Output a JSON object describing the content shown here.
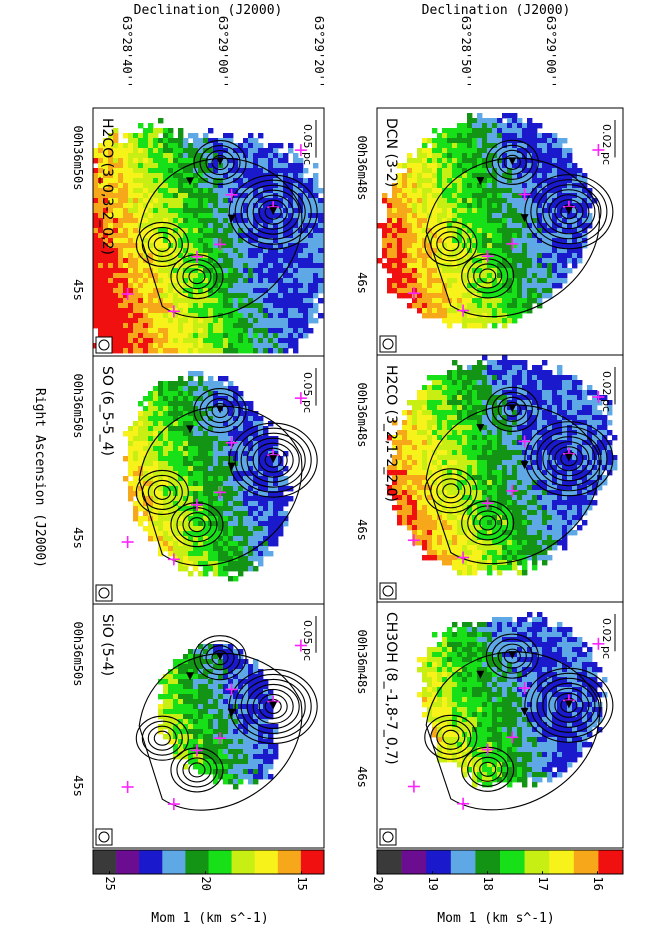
{
  "top_axis_labels": [
    "Declination (J2000)",
    "Declination (J2000)"
  ],
  "bottom_axis_label": "Right Ascension (J2000)",
  "right_figure": {
    "dec_ticks": [
      "63°29'00''",
      "63°28'50''"
    ],
    "ra_ticks": [
      "00h36m48s",
      "46s"
    ],
    "colorbar_label": "Mom 1 (km s^-1)",
    "colorbar_ticks": [
      "-20",
      "-19",
      "-18",
      "-17",
      "-16"
    ]
  },
  "left_figure": {
    "dec_ticks": [
      "63°29'20''",
      "63°29'00''",
      "63°28'40''"
    ],
    "ra_ticks": [
      "00h36m50s",
      "45s"
    ],
    "colorbar_label": "Mom 1 (km s^-1)",
    "colorbar_ticks": [
      "-25",
      "-20",
      "-15"
    ]
  },
  "colors": {
    "colorbar": [
      "#3a3a3a",
      "#6a0d91",
      "#1a1acc",
      "#5fa8e6",
      "#149414",
      "#18e018",
      "#c8ef14",
      "#f7f21a",
      "#f7a81a",
      "#f01010"
    ],
    "marker": "#ff22ff",
    "contour": "#000000"
  },
  "panels": [
    {
      "id": "DCN",
      "label": "DCN (3-2)",
      "scale_bar": "0.02 pc",
      "seed": 11,
      "cen": [
        0.55,
        0.45
      ],
      "spread": 0.4
    },
    {
      "id": "H2CO_321",
      "label": "H2CO (3_2,1-2_2,0)",
      "scale_bar": "0.02 pc",
      "seed": 23,
      "cen": [
        0.55,
        0.45
      ],
      "spread": 0.4
    },
    {
      "id": "CH3OH",
      "label": "CH3OH (8_-1,8-7_0,7)",
      "scale_bar": "0.02 pc",
      "seed": 37,
      "cen": [
        0.55,
        0.45
      ],
      "spread": 0.33
    },
    {
      "id": "H2CO_303",
      "label": "H2CO (3_0,3-2_0,2)",
      "scale_bar": "0.05 pc",
      "seed": 41,
      "cen": [
        0.48,
        0.5
      ],
      "spread": 0.48
    },
    {
      "id": "SO",
      "label": "SO (6_5-5_4)",
      "scale_bar": "0.05 pc",
      "seed": 53,
      "cen": [
        0.55,
        0.5
      ],
      "spread": 0.36
    },
    {
      "id": "SiO",
      "label": "SiO (5-4)",
      "scale_bar": "0.05 pc",
      "seed": 67,
      "cen": [
        0.6,
        0.5
      ],
      "spread": 0.24
    }
  ],
  "chart_data": {
    "type": "heatmap",
    "panels": [
      "DCN (3-2)",
      "H2CO (3_2,1-2_2,0)",
      "CH3OH (8_-1,8-7_0,7)",
      "H2CO (3_0,3-2_0,2)",
      "SO (6_5-5_4)",
      "SiO (5-4)"
    ],
    "right_colorbar_range_km_s": [
      -20,
      -15.5
    ],
    "left_colorbar_range_km_s": [
      -26,
      -14
    ],
    "xlabel": "Right Ascension (J2000)",
    "ylabel": "Declination (J2000)",
    "colorbar_label": "Mom 1 (km s^-1)"
  }
}
